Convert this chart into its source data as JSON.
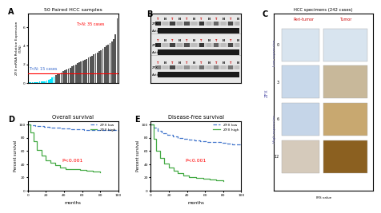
{
  "panel_A": {
    "title": "50 Paired HCC samples",
    "ylabel": "ZFX mRNA Relative Expression\n(T/N)",
    "cyan_values": [
      0.05,
      0.07,
      0.08,
      0.09,
      0.1,
      0.11,
      0.12,
      0.14,
      0.16,
      0.18,
      0.22,
      0.3,
      0.4,
      0.55,
      0.7
    ],
    "gray_values": [
      0.85,
      0.95,
      1.05,
      1.15,
      1.25,
      1.35,
      1.45,
      1.55,
      1.65,
      1.78,
      1.9,
      2.0,
      2.1,
      2.2,
      2.3,
      2.4,
      2.5,
      2.6,
      2.7,
      2.82,
      2.95,
      3.05,
      3.15,
      3.28,
      3.4,
      3.55,
      3.7,
      3.85,
      4.0,
      4.15,
      4.3,
      4.5,
      4.7,
      5.2,
      7.0
    ],
    "red_line_y": 1.0,
    "label_high": "T>N: 35 cases",
    "label_low": "T<N: 15 cases",
    "ylim": [
      0,
      7.5
    ],
    "yticks": [
      0,
      2,
      4,
      6
    ]
  },
  "panel_D": {
    "title": "Overall survival",
    "xlabel": "months",
    "ylabel": "Percent survival",
    "xlim": [
      0,
      100
    ],
    "ylim": [
      0,
      105
    ],
    "xticks": [
      0,
      20,
      40,
      60,
      80,
      100
    ],
    "yticks": [
      0,
      20,
      40,
      60,
      80,
      100
    ],
    "blue_x": [
      0,
      3,
      8,
      12,
      18,
      24,
      30,
      36,
      42,
      48,
      55,
      62,
      70,
      78,
      85,
      90,
      95,
      100
    ],
    "blue_y": [
      100,
      99,
      98,
      97,
      96,
      95,
      95,
      94,
      94,
      93,
      93,
      92,
      92,
      92,
      91,
      91,
      91,
      90
    ],
    "green_x": [
      0,
      3,
      6,
      10,
      15,
      20,
      25,
      30,
      36,
      42,
      50,
      58,
      65,
      72,
      80
    ],
    "green_y": [
      100,
      88,
      75,
      62,
      53,
      46,
      42,
      38,
      35,
      33,
      32,
      31,
      30,
      29,
      28
    ],
    "p_value": "P<0.001",
    "legend_blue": "ZFX low",
    "legend_green": "ZFX high"
  },
  "panel_E": {
    "title": "Disease-free survival",
    "xlabel": "months",
    "ylabel": "Percent survival",
    "xlim": [
      0,
      100
    ],
    "ylim": [
      0,
      105
    ],
    "xticks": [
      0,
      20,
      40,
      60,
      80,
      100
    ],
    "yticks": [
      0,
      20,
      40,
      60,
      80,
      100
    ],
    "blue_x": [
      0,
      3,
      8,
      12,
      18,
      24,
      30,
      36,
      42,
      48,
      55,
      62,
      70,
      78,
      85,
      90,
      95,
      100
    ],
    "blue_y": [
      100,
      95,
      90,
      87,
      84,
      82,
      80,
      78,
      77,
      76,
      75,
      74,
      73,
      72,
      71,
      70,
      70,
      69
    ],
    "green_x": [
      0,
      3,
      6,
      10,
      15,
      20,
      25,
      30,
      36,
      42,
      50,
      58,
      65,
      72,
      80
    ],
    "green_y": [
      100,
      78,
      60,
      49,
      41,
      35,
      30,
      26,
      23,
      21,
      19,
      18,
      17,
      16,
      15
    ],
    "p_value": "P<0.001",
    "legend_blue": "ZFX low",
    "legend_green": "ZFX high"
  },
  "panel_C": {
    "title": "HCC specimens (242 cases)",
    "label_peritumor": "Peri-tumor",
    "label_tumor": "Tumor",
    "label_low_expr": "Low expression",
    "label_high_expr": "High expression",
    "label_zfx": "ZFX",
    "label_irs": "IRS value",
    "irs_values": [
      "0",
      "3",
      "6",
      "12"
    ],
    "row_colors_peri": [
      "#D8E4EF",
      "#C8D8EA",
      "#C5D5E8",
      "#D5CABB"
    ],
    "row_colors_tumor": [
      "#D8E4EF",
      "#C8B89A",
      "#C8A870",
      "#8B6020"
    ]
  },
  "panel_B": {
    "label": "B",
    "bg_color": "#E8E8E8",
    "band_colors": [
      "#404040",
      "#303030"
    ],
    "label_zfx": "ZFX",
    "label_actin": "Actin",
    "tn_labels_red": [
      "T",
      "N",
      "T",
      "N",
      "T",
      "N",
      "T",
      "N",
      "T",
      "N",
      "T",
      "N"
    ]
  },
  "colors": {
    "cyan": "#00E5FF",
    "gray": "#555555",
    "red": "#FF0000",
    "blue": "#3366CC",
    "green": "#33AA33",
    "label_red": "#CC0000",
    "label_blue": "#3366CC",
    "blue_line": "#4477CC",
    "green_line": "#44AA44"
  },
  "background": "#FFFFFF"
}
